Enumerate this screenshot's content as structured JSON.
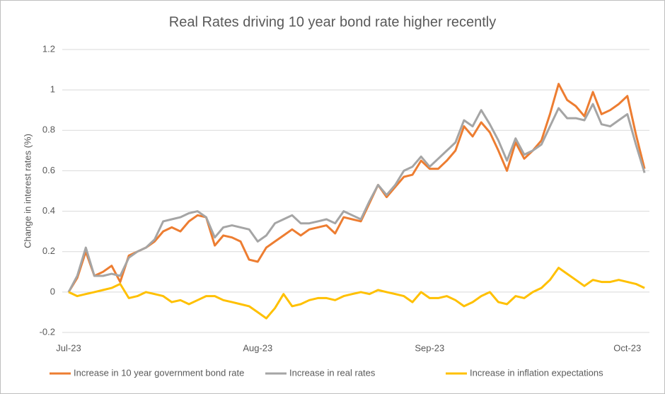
{
  "chart_data": {
    "type": "line",
    "title": "Real Rates driving 10 year bond rate higher recently",
    "y_label": "Change in interest rates (%)",
    "categories": [
      "Jul-23",
      null,
      null,
      null,
      null,
      null,
      null,
      null,
      null,
      null,
      null,
      null,
      null,
      null,
      null,
      null,
      null,
      null,
      null,
      null,
      null,
      null,
      "Aug-23",
      null,
      null,
      null,
      null,
      null,
      null,
      null,
      null,
      null,
      null,
      null,
      null,
      null,
      null,
      null,
      null,
      null,
      null,
      null,
      "Sep-23",
      null,
      null,
      null,
      null,
      null,
      null,
      null,
      null,
      null,
      null,
      null,
      null,
      null,
      null,
      null,
      null,
      null,
      null,
      null,
      null,
      null,
      null,
      "Oct-23",
      null,
      null
    ],
    "series": [
      {
        "name": "Increase in 10 year government bond rate",
        "color": "#ed7d31",
        "values": [
          0,
          0.07,
          0.2,
          0.08,
          0.1,
          0.13,
          0.05,
          0.18,
          0.2,
          0.22,
          0.25,
          0.3,
          0.32,
          0.3,
          0.35,
          0.38,
          0.37,
          0.23,
          0.28,
          0.27,
          0.25,
          0.16,
          0.15,
          0.22,
          0.25,
          0.28,
          0.31,
          0.28,
          0.31,
          0.32,
          0.33,
          0.29,
          0.37,
          0.36,
          0.35,
          0.44,
          0.53,
          0.47,
          0.52,
          0.57,
          0.58,
          0.65,
          0.61,
          0.61,
          0.65,
          0.7,
          0.82,
          0.77,
          0.84,
          0.79,
          0.7,
          0.6,
          0.74,
          0.66,
          0.7,
          0.75,
          0.88,
          1.03,
          0.95,
          0.92,
          0.87,
          0.99,
          0.88,
          0.9,
          0.93,
          0.97,
          0.78,
          0.61
        ]
      },
      {
        "name": "Increase in real rates",
        "color": "#a5a5a5",
        "values": [
          0,
          0.08,
          0.22,
          0.08,
          0.08,
          0.09,
          0.08,
          0.17,
          0.2,
          0.22,
          0.26,
          0.35,
          0.36,
          0.37,
          0.39,
          0.4,
          0.37,
          0.27,
          0.32,
          0.33,
          0.32,
          0.31,
          0.25,
          0.28,
          0.34,
          0.36,
          0.38,
          0.34,
          0.34,
          0.35,
          0.36,
          0.34,
          0.4,
          0.38,
          0.36,
          0.45,
          0.53,
          0.48,
          0.53,
          0.6,
          0.62,
          0.67,
          0.62,
          0.66,
          0.7,
          0.74,
          0.85,
          0.82,
          0.9,
          0.83,
          0.75,
          0.65,
          0.76,
          0.68,
          0.7,
          0.73,
          0.82,
          0.91,
          0.86,
          0.86,
          0.85,
          0.93,
          0.83,
          0.82,
          0.85,
          0.88,
          0.73,
          0.59
        ]
      },
      {
        "name": "Increase in inflation expectations",
        "color": "#ffc000",
        "values": [
          0,
          -0.02,
          -0.01,
          0,
          0.01,
          0.02,
          0.04,
          -0.03,
          -0.02,
          0,
          -0.01,
          -0.02,
          -0.05,
          -0.04,
          -0.06,
          -0.04,
          -0.02,
          -0.02,
          -0.04,
          -0.05,
          -0.06,
          -0.07,
          -0.1,
          -0.13,
          -0.08,
          -0.01,
          -0.07,
          -0.06,
          -0.04,
          -0.03,
          -0.03,
          -0.04,
          -0.02,
          -0.01,
          0,
          -0.01,
          0.01,
          0,
          -0.01,
          -0.02,
          -0.05,
          0,
          -0.03,
          -0.03,
          -0.02,
          -0.04,
          -0.07,
          -0.05,
          -0.02,
          0,
          -0.05,
          -0.06,
          -0.02,
          -0.03,
          0,
          0.02,
          0.06,
          0.12,
          0.09,
          0.06,
          0.03,
          0.06,
          0.05,
          0.05,
          0.06,
          0.05,
          0.04,
          0.02
        ]
      }
    ],
    "ylim": [
      -0.2,
      1.2
    ],
    "yticks": [
      -0.2,
      0,
      0.2,
      0.4,
      0.6,
      0.8,
      1,
      1.2
    ],
    "grid": true,
    "legend": "bottom"
  }
}
